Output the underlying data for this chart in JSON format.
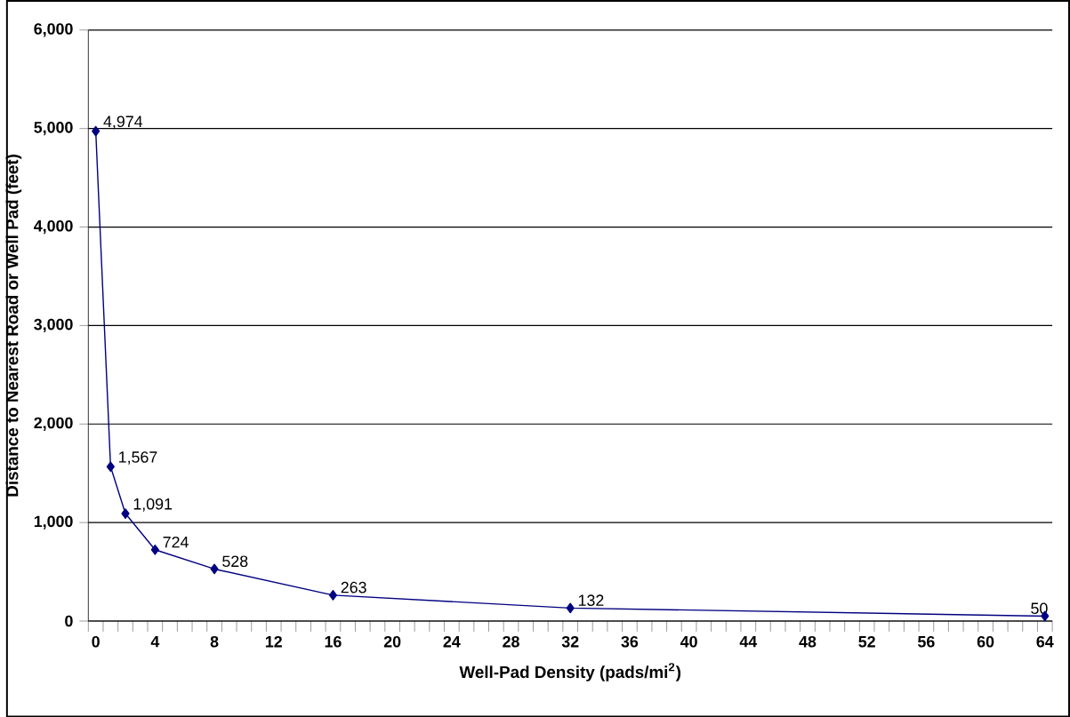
{
  "chart_data": {
    "type": "line",
    "xlabel": "Well-Pad Density (pads/mi$^{2}$)",
    "ylabel": "Distance to Nearest Road or Well Pad (feet)",
    "x": [
      0,
      1,
      2,
      4,
      8,
      16,
      32,
      64
    ],
    "series": [
      {
        "color": "#000080",
        "values": [
          4974,
          1567,
          1091,
          724,
          528,
          263,
          132,
          50
        ],
        "value_labels": [
          "4,974",
          "1,567",
          "1,091",
          "724",
          "528",
          "263",
          "132",
          "50"
        ]
      }
    ],
    "xlim": [
      -0.5,
      64.5
    ],
    "xticks": [
      {
        "value": 0,
        "label": "0"
      },
      {
        "value": 4,
        "label": "4"
      },
      {
        "value": 8,
        "label": "8"
      },
      {
        "value": 12,
        "label": "12"
      },
      {
        "value": 16,
        "label": "16"
      },
      {
        "value": 20,
        "label": "20"
      },
      {
        "value": 24,
        "label": "24"
      },
      {
        "value": 28,
        "label": "28"
      },
      {
        "value": 32,
        "label": "32"
      },
      {
        "value": 36,
        "label": "36"
      },
      {
        "value": 40,
        "label": "40"
      },
      {
        "value": 44,
        "label": "44"
      },
      {
        "value": 48,
        "label": "48"
      },
      {
        "value": 52,
        "label": "52"
      },
      {
        "value": 56,
        "label": "56"
      },
      {
        "value": 60,
        "label": "60"
      },
      {
        "value": 64,
        "label": "64"
      },
      {
        "value": -0.5,
        "label": null
      },
      {
        "value": 0.5,
        "label": null
      },
      {
        "value": 1.5,
        "label": null
      },
      {
        "value": 2.5,
        "label": null
      },
      {
        "value": 3.5,
        "label": null
      },
      {
        "value": 4.5,
        "label": null
      },
      {
        "value": 5.5,
        "label": null
      },
      {
        "value": 6.5,
        "label": null
      },
      {
        "value": 7.5,
        "label": null
      },
      {
        "value": 8.5,
        "label": null
      },
      {
        "value": 9.5,
        "label": null
      },
      {
        "value": 10.5,
        "label": null
      },
      {
        "value": 11.5,
        "label": null
      },
      {
        "value": 12.5,
        "label": null
      },
      {
        "value": 13.5,
        "label": null
      },
      {
        "value": 14.5,
        "label": null
      },
      {
        "value": 15.5,
        "label": null
      },
      {
        "value": 16.5,
        "label": null
      },
      {
        "value": 17.5,
        "label": null
      },
      {
        "value": 18.5,
        "label": null
      },
      {
        "value": 19.5,
        "label": null
      },
      {
        "value": 20.5,
        "label": null
      },
      {
        "value": 21.5,
        "label": null
      },
      {
        "value": 22.5,
        "label": null
      },
      {
        "value": 23.5,
        "label": null
      },
      {
        "value": 24.5,
        "label": null
      },
      {
        "value": 25.5,
        "label": null
      },
      {
        "value": 26.5,
        "label": null
      },
      {
        "value": 27.5,
        "label": null
      },
      {
        "value": 28.5,
        "label": null
      },
      {
        "value": 29.5,
        "label": null
      },
      {
        "value": 30.5,
        "label": null
      },
      {
        "value": 31.5,
        "label": null
      },
      {
        "value": 32.5,
        "label": null
      },
      {
        "value": 33.5,
        "label": null
      },
      {
        "value": 34.5,
        "label": null
      },
      {
        "value": 35.5,
        "label": null
      },
      {
        "value": 36.5,
        "label": null
      },
      {
        "value": 37.5,
        "label": null
      },
      {
        "value": 38.5,
        "label": null
      },
      {
        "value": 39.5,
        "label": null
      },
      {
        "value": 40.5,
        "label": null
      },
      {
        "value": 41.5,
        "label": null
      },
      {
        "value": 42.5,
        "label": null
      },
      {
        "value": 43.5,
        "label": null
      },
      {
        "value": 44.5,
        "label": null
      },
      {
        "value": 45.5,
        "label": null
      },
      {
        "value": 46.5,
        "label": null
      },
      {
        "value": 47.5,
        "label": null
      },
      {
        "value": 48.5,
        "label": null
      },
      {
        "value": 49.5,
        "label": null
      },
      {
        "value": 50.5,
        "label": null
      },
      {
        "value": 51.5,
        "label": null
      },
      {
        "value": 52.5,
        "label": null
      },
      {
        "value": 53.5,
        "label": null
      },
      {
        "value": 54.5,
        "label": null
      },
      {
        "value": 55.5,
        "label": null
      },
      {
        "value": 56.5,
        "label": null
      },
      {
        "value": 57.5,
        "label": null
      },
      {
        "value": 58.5,
        "label": null
      },
      {
        "value": 59.5,
        "label": null
      },
      {
        "value": 60.5,
        "label": null
      },
      {
        "value": 61.5,
        "label": null
      },
      {
        "value": 62.5,
        "label": null
      },
      {
        "value": 63.5,
        "label": null
      },
      {
        "value": 64.5,
        "label": null
      }
    ],
    "ylim": [
      0,
      6000
    ],
    "yticks": [
      {
        "value": 0,
        "label": "0"
      },
      {
        "value": 1000,
        "label": "1,000"
      },
      {
        "value": 2000,
        "label": "2,000"
      },
      {
        "value": 3000,
        "label": "3,000"
      },
      {
        "value": 4000,
        "label": "4,000"
      },
      {
        "value": 5000,
        "label": "5,000"
      },
      {
        "value": 6000,
        "label": "6,000"
      }
    ],
    "grid": "y",
    "marker": "diamond",
    "line_style": "solid"
  }
}
